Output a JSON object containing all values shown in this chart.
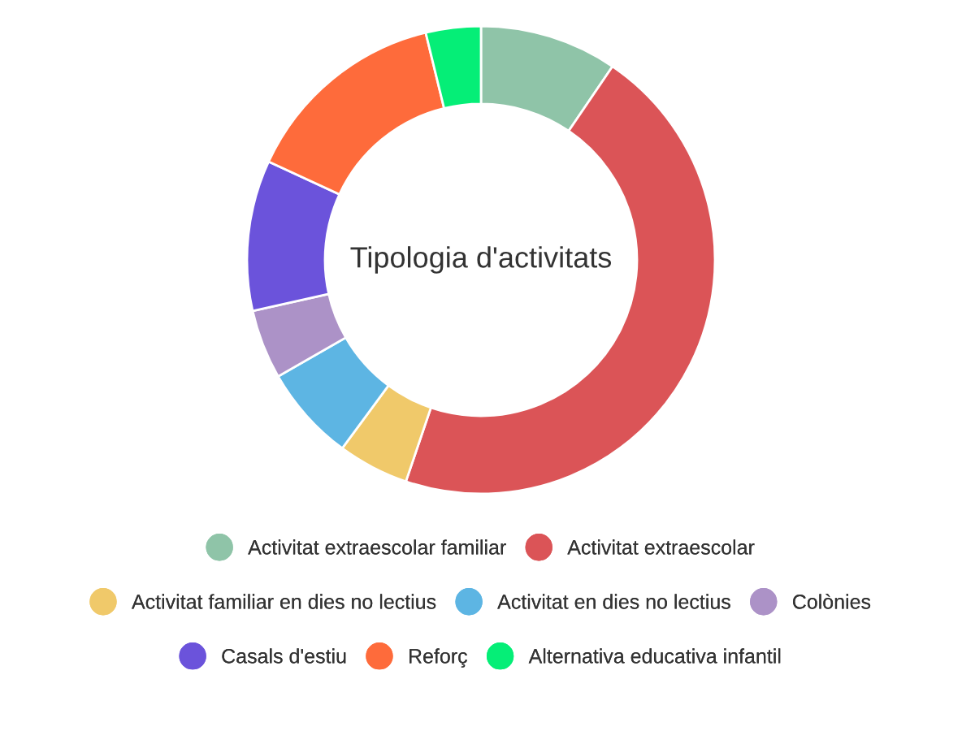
{
  "chart_data": {
    "type": "donut",
    "title": "Tipologia d'activitats",
    "categories": [
      "Activitat extraescolar familiar",
      "Activitat extraescolar",
      "Activitat familiar en dies no lectius",
      "Activitat en dies no lectius",
      "Colònies",
      "Casals d'estiu",
      "Reforç",
      "Alternativa educativa infantil"
    ],
    "values": [
      9.5,
      45.7,
      4.9,
      6.6,
      4.8,
      10.4,
      14.3,
      3.8
    ],
    "colors": [
      "#8fc4a8",
      "#db5457",
      "#f0c96a",
      "#5db5e3",
      "#ac92c7",
      "#6b53db",
      "#fe6b3b",
      "#05ee77"
    ],
    "legend": "bottom"
  }
}
